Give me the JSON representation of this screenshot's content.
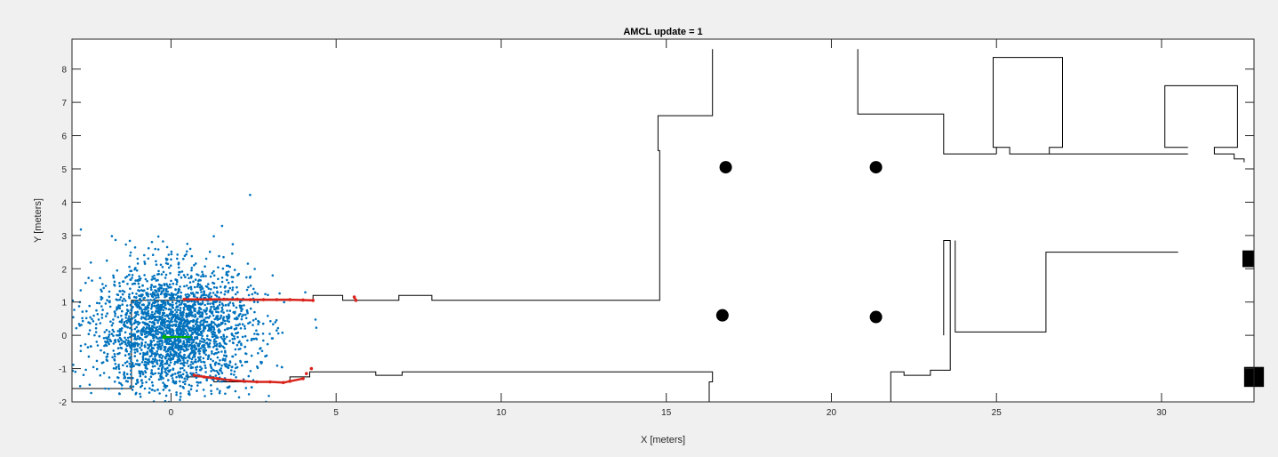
{
  "chart_data": {
    "type": "scatter",
    "title": "AMCL update = 1",
    "xlabel": "X [meters]",
    "ylabel": "Y [meters]",
    "xlim": [
      -3,
      32.8
    ],
    "ylim": [
      -2,
      8.9
    ],
    "xticks": [
      0,
      5,
      10,
      15,
      20,
      25,
      30
    ],
    "yticks": [
      -2,
      -1,
      0,
      1,
      2,
      3,
      4,
      5,
      6,
      7,
      8
    ],
    "grid": false,
    "series": [
      {
        "kind": "map-outline",
        "color": "#000000",
        "polylines": [
          [
            [
              -3,
              -1.6
            ],
            [
              -1.2,
              -1.6
            ],
            [
              -1.2,
              1.05
            ],
            [
              0.3,
              1.05
            ],
            [
              4.3,
              1.05
            ],
            [
              4.3,
              1.2
            ],
            [
              5.2,
              1.2
            ],
            [
              5.2,
              1.05
            ],
            [
              6.9,
              1.05
            ],
            [
              6.9,
              1.2
            ],
            [
              7.9,
              1.2
            ],
            [
              7.9,
              1.05
            ],
            [
              14.8,
              1.05
            ],
            [
              14.8,
              5.55
            ],
            [
              14.75,
              5.55
            ],
            [
              14.75,
              6.6
            ],
            [
              16.4,
              6.6
            ],
            [
              16.4,
              8.6
            ]
          ],
          [
            [
              20.8,
              8.6
            ],
            [
              20.8,
              6.65
            ],
            [
              23.4,
              6.65
            ],
            [
              23.4,
              5.45
            ],
            [
              25.0,
              5.45
            ]
          ],
          [
            [
              25.0,
              5.45
            ],
            [
              25.0,
              5.65
            ],
            [
              25.4,
              5.65
            ],
            [
              25.4,
              5.45
            ],
            [
              30.8,
              5.45
            ]
          ],
          [
            [
              25.0,
              5.65
            ],
            [
              24.9,
              5.65
            ],
            [
              24.9,
              8.35
            ],
            [
              27.0,
              8.35
            ],
            [
              27.0,
              5.65
            ],
            [
              26.6,
              5.65
            ],
            [
              26.6,
              5.45
            ]
          ],
          [
            [
              30.8,
              5.65
            ],
            [
              30.1,
              5.65
            ],
            [
              30.1,
              7.5
            ],
            [
              32.3,
              7.5
            ],
            [
              32.3,
              5.65
            ],
            [
              31.6,
              5.65
            ],
            [
              31.6,
              5.45
            ],
            [
              32.2,
              5.45
            ],
            [
              32.2,
              5.3
            ],
            [
              32.5,
              5.3
            ],
            [
              32.5,
              5.2
            ]
          ],
          [
            [
              -1.2,
              -1.6
            ],
            [
              -1.2,
              -1.6
            ],
            [
              -1.3,
              -1.6
            ]
          ],
          [
            [
              0.5,
              -1.35
            ],
            [
              0.5,
              -1.25
            ],
            [
              1.3,
              -1.25
            ],
            [
              1.3,
              -1.4
            ],
            [
              3.6,
              -1.4
            ],
            [
              3.6,
              -1.25
            ],
            [
              4.2,
              -1.25
            ],
            [
              4.2,
              -1.1
            ],
            [
              6.2,
              -1.1
            ],
            [
              6.2,
              -1.2
            ],
            [
              7.0,
              -1.2
            ],
            [
              7.0,
              -1.1
            ],
            [
              16.4,
              -1.1
            ],
            [
              16.4,
              -1.4
            ],
            [
              16.3,
              -1.4
            ],
            [
              16.3,
              -2
            ]
          ],
          [
            [
              21.8,
              -2
            ],
            [
              21.8,
              -1.1
            ],
            [
              22.2,
              -1.1
            ],
            [
              22.2,
              -1.2
            ],
            [
              23.0,
              -1.2
            ],
            [
              23.0,
              -1.05
            ],
            [
              23.6,
              -1.05
            ],
            [
              23.6,
              2.85
            ],
            [
              23.4,
              2.85
            ],
            [
              23.4,
              0
            ]
          ],
          [
            [
              23.75,
              2.85
            ],
            [
              23.75,
              0.1
            ],
            [
              26.5,
              0.1
            ],
            [
              26.5,
              2.5
            ],
            [
              30.5,
              2.5
            ]
          ]
        ]
      },
      {
        "kind": "landmarks",
        "color": "#000000",
        "circles": [
          [
            16.8,
            5.05
          ],
          [
            21.35,
            5.05
          ],
          [
            16.7,
            0.6
          ],
          [
            21.35,
            0.55
          ]
        ],
        "rects": [
          [
            32.45,
            2.05,
            0.35,
            0.5
          ],
          [
            32.5,
            -1.55,
            0.6,
            0.6
          ]
        ]
      },
      {
        "kind": "laser-scan",
        "color": "#d9241c",
        "points": [
          [
            0.4,
            1.08
          ],
          [
            0.8,
            1.08
          ],
          [
            1.2,
            1.08
          ],
          [
            1.6,
            1.08
          ],
          [
            2.0,
            1.08
          ],
          [
            2.4,
            1.07
          ],
          [
            2.8,
            1.07
          ],
          [
            3.2,
            1.07
          ],
          [
            3.6,
            1.07
          ],
          [
            4.0,
            1.06
          ],
          [
            4.3,
            1.05
          ],
          [
            5.55,
            1.15
          ],
          [
            5.6,
            1.05
          ],
          [
            0.7,
            -1.2
          ],
          [
            1.0,
            -1.25
          ],
          [
            1.4,
            -1.3
          ],
          [
            1.8,
            -1.35
          ],
          [
            2.2,
            -1.38
          ],
          [
            2.6,
            -1.4
          ],
          [
            3.0,
            -1.4
          ],
          [
            3.4,
            -1.42
          ],
          [
            3.6,
            -1.38
          ],
          [
            4.0,
            -1.3
          ],
          [
            4.1,
            -1.15
          ],
          [
            4.25,
            -1.0
          ]
        ]
      },
      {
        "kind": "particles",
        "color": "#0072bd",
        "count": 2500,
        "mean": [
          0.1,
          0.15
        ],
        "std": [
          1.2,
          0.95
        ]
      },
      {
        "kind": "pose-estimate",
        "color": "#00b000",
        "x": [
          -0.2,
          0.6
        ],
        "y": [
          -0.05,
          -0.05
        ]
      }
    ]
  }
}
